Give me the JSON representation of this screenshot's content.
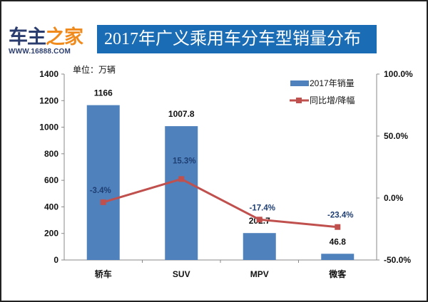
{
  "logo": {
    "name_a": "车主",
    "name_b": "之家",
    "url": "WWW.16888.COM"
  },
  "chart_data": {
    "type": "bar+line",
    "title": "2017年广义乘用车分车型销量分布",
    "unit_label": "单位：万辆",
    "categories": [
      "轿车",
      "SUV",
      "MPV",
      "微客"
    ],
    "series": [
      {
        "name": "2017年销量",
        "type": "bar",
        "axis": "left",
        "color": "#4f81bd",
        "values": [
          1166,
          1007.8,
          202.7,
          46.8
        ],
        "labels": [
          "1166",
          "1007.8",
          "202.7",
          "46.8"
        ]
      },
      {
        "name": "同比增/降幅",
        "type": "line",
        "axis": "right",
        "color": "#c0504d",
        "values": [
          -3.4,
          15.3,
          -17.4,
          -23.4
        ],
        "labels": [
          "-3.4%",
          "15.3%",
          "-17.4%",
          "-23.4%"
        ]
      }
    ],
    "left_axis": {
      "range": [
        0,
        1400
      ],
      "ticks": [
        "0",
        "200",
        "400",
        "600",
        "800",
        "1000",
        "1200",
        "1400"
      ]
    },
    "right_axis": {
      "range": [
        -50,
        100
      ],
      "ticks": [
        "-50.0%",
        "0.0%",
        "50.0%",
        "100.0%"
      ]
    },
    "grid": false,
    "legend": "top-right"
  }
}
